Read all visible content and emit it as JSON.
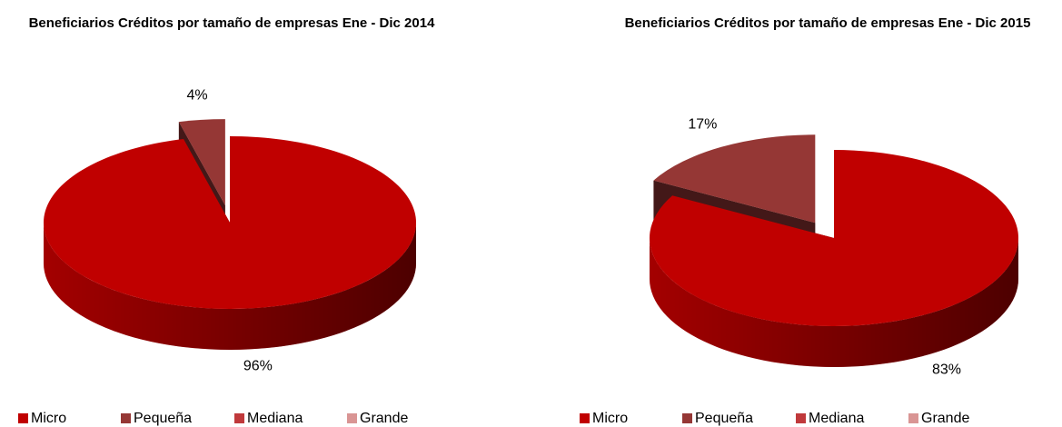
{
  "chart_data": [
    {
      "type": "pie",
      "title": "Beneficiarios Créditos por tamaño de empresas Ene -  Dic 2014",
      "categories": [
        "Micro",
        "Pequeña",
        "Mediana",
        "Grande"
      ],
      "values": [
        96,
        4,
        0,
        0
      ],
      "value_labels": [
        "96%",
        "4%",
        null,
        null
      ],
      "colors": [
        "#c00000",
        "#953735",
        "#c0393b",
        "#d99594"
      ],
      "legend": "bottom"
    },
    {
      "type": "pie",
      "title": "Beneficiarios Créditos por tamaño de empresas Ene -  Dic 2015",
      "categories": [
        "Micro",
        "Pequeña",
        "Mediana",
        "Grande"
      ],
      "values": [
        83,
        17,
        0,
        0
      ],
      "value_labels": [
        "83%",
        "17%",
        null,
        null
      ],
      "colors": [
        "#c00000",
        "#953735",
        "#c0393b",
        "#d99594"
      ],
      "legend": "bottom"
    }
  ]
}
